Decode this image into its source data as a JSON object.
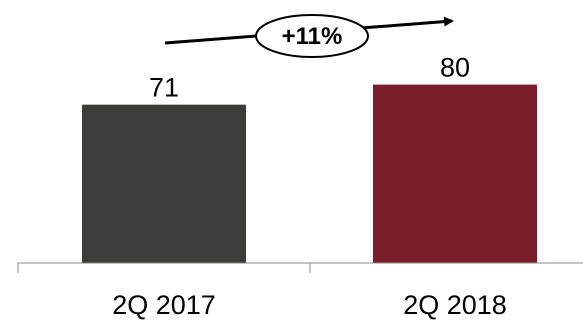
{
  "chart_data": {
    "type": "bar",
    "categories": [
      "2Q 2017",
      "2Q 2018"
    ],
    "values": [
      71,
      80
    ],
    "data_labels": [
      "71",
      "80"
    ],
    "bar_colors": [
      "#3c3c3a",
      "#7b1e2b"
    ],
    "annotation": "+11%",
    "ylim": [
      0,
      80
    ],
    "grid": false,
    "title": "",
    "xlabel": "",
    "ylabel": ""
  }
}
